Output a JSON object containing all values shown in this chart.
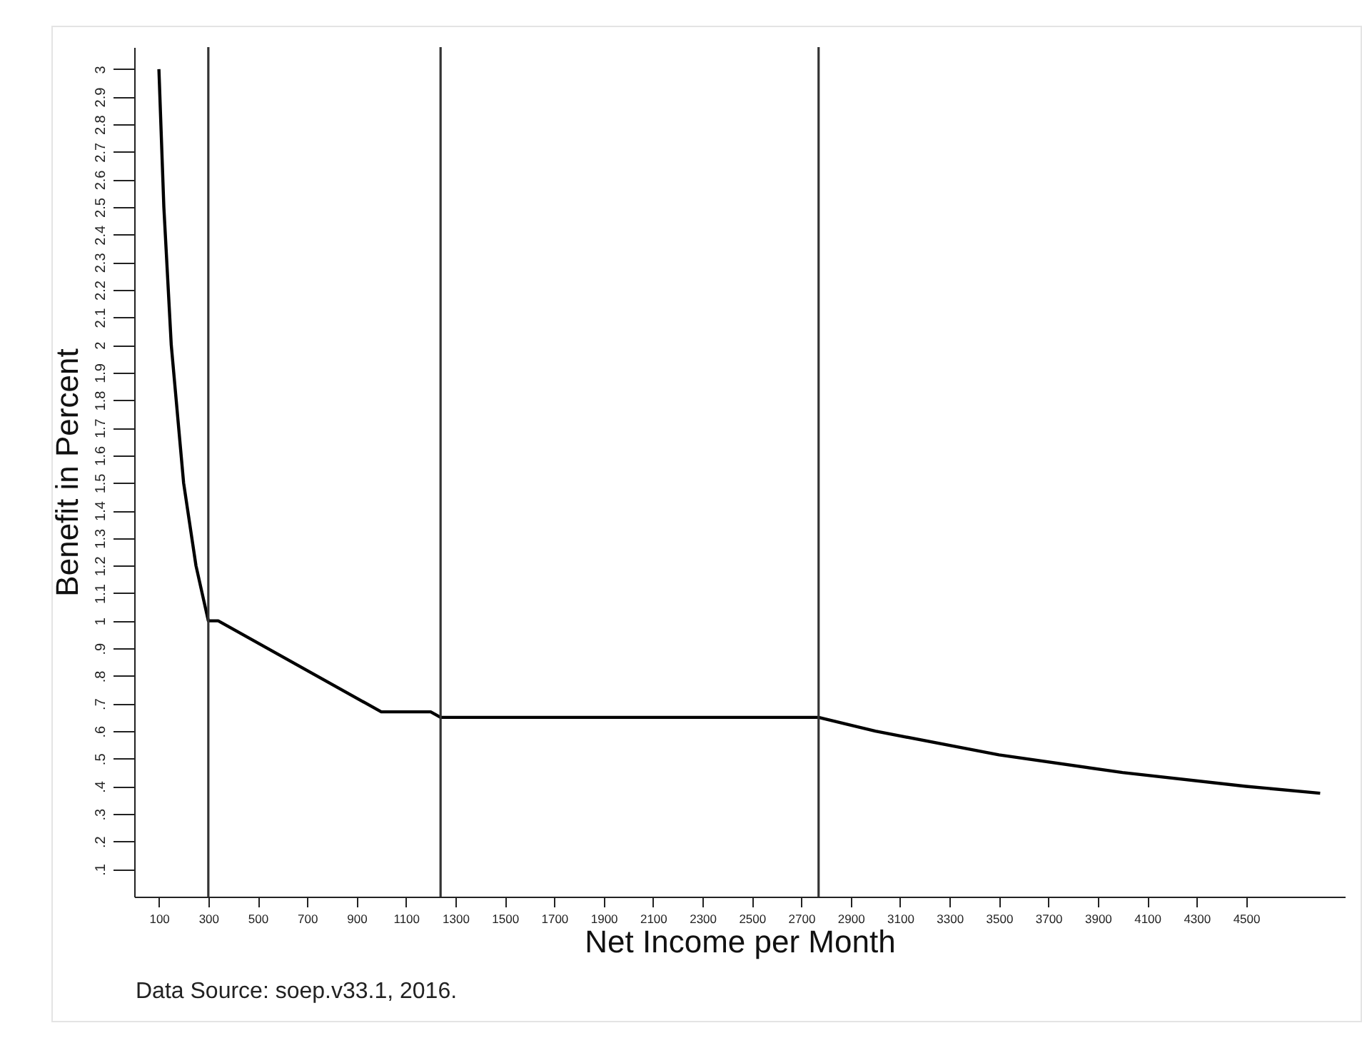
{
  "chart_data": {
    "type": "line",
    "xlabel": "Net Income per Month",
    "ylabel": "Benefit in Percent",
    "annotations": [
      "Data Source: soep.v33.1, 2016."
    ],
    "x": [
      100,
      120,
      150,
      200,
      250,
      300,
      340,
      1000,
      1200,
      1240,
      2770,
      3000,
      3500,
      4000,
      4500,
      4800
    ],
    "series": [
      {
        "color": "#000000",
        "values": [
          3,
          2.5,
          2,
          1.5,
          1.2,
          1,
          1,
          0.67,
          0.67,
          0.65,
          0.65,
          0.6,
          0.514,
          0.45,
          0.4,
          0.375
        ]
      }
    ],
    "xlim": [
      0,
      4900
    ],
    "xticks": [
      100,
      300,
      500,
      700,
      900,
      1100,
      1300,
      1500,
      1700,
      1900,
      2100,
      2300,
      2500,
      2700,
      2900,
      3100,
      3300,
      3500,
      3700,
      3900,
      4100,
      4300,
      4500
    ],
    "ylim": [
      0,
      3.08
    ],
    "yticks": [
      {
        "value": 0.1,
        "label": ".1"
      },
      {
        "value": 0.2,
        "label": ".2"
      },
      {
        "value": 0.3,
        "label": ".3"
      },
      {
        "value": 0.4,
        "label": ".4"
      },
      {
        "value": 0.5,
        "label": ".5"
      },
      {
        "value": 0.6,
        "label": ".6"
      },
      {
        "value": 0.7,
        "label": ".7"
      },
      {
        "value": 0.8,
        "label": ".8"
      },
      {
        "value": 0.9,
        "label": ".9"
      },
      1,
      1.1,
      1.2,
      1.3,
      1.4,
      1.5,
      1.6,
      1.7,
      1.8,
      1.9,
      2,
      2.1,
      2.2,
      2.3,
      2.4,
      2.5,
      2.6,
      2.7,
      2.8,
      2.9,
      3
    ],
    "ref_lines": [
      {
        "axis": "x",
        "value": 300,
        "color": "#333333"
      },
      {
        "axis": "x",
        "value": 1240,
        "color": "#333333"
      },
      {
        "axis": "x",
        "value": 2770,
        "color": "#333333"
      }
    ],
    "grid": false,
    "marker": "none",
    "line_style": "solid"
  }
}
